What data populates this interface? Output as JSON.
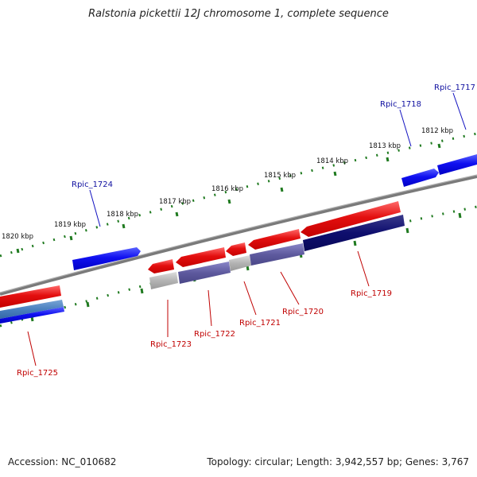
{
  "title": "Ralstonia pickettii 12J chromosome 1, complete sequence",
  "accession": "Accession: NC_010682",
  "topology": "Topology: circular; Length: 3,942,557 bp; Genes: 3,767",
  "ruler_labels": [
    {
      "text": "1820 kbp"
    },
    {
      "text": "1819 kbp"
    },
    {
      "text": "1818 kbp"
    },
    {
      "text": "1817 kbp"
    },
    {
      "text": "1816 kbp"
    },
    {
      "text": "1815 kbp"
    },
    {
      "text": "1814 kbp"
    },
    {
      "text": "1813 kbp"
    },
    {
      "text": "1812 kbp"
    }
  ],
  "genes": [
    {
      "name": "Rpic_1717",
      "strand": "forward"
    },
    {
      "name": "Rpic_1718",
      "strand": "forward"
    },
    {
      "name": "Rpic_1719",
      "strand": "reverse"
    },
    {
      "name": "Rpic_1720",
      "strand": "reverse"
    },
    {
      "name": "Rpic_1721",
      "strand": "reverse"
    },
    {
      "name": "Rpic_1722",
      "strand": "reverse"
    },
    {
      "name": "Rpic_1723",
      "strand": "reverse"
    },
    {
      "name": "Rpic_1724",
      "strand": "forward"
    },
    {
      "name": "Rpic_1725",
      "strand": "reverse"
    }
  ],
  "colors": {
    "forward": "#0a14ee",
    "reverse": "#e00c0c",
    "backbone": "#808080",
    "tick": "#1f7a1f",
    "forward_label": "#1010a0",
    "reverse_label": "#c00000"
  }
}
